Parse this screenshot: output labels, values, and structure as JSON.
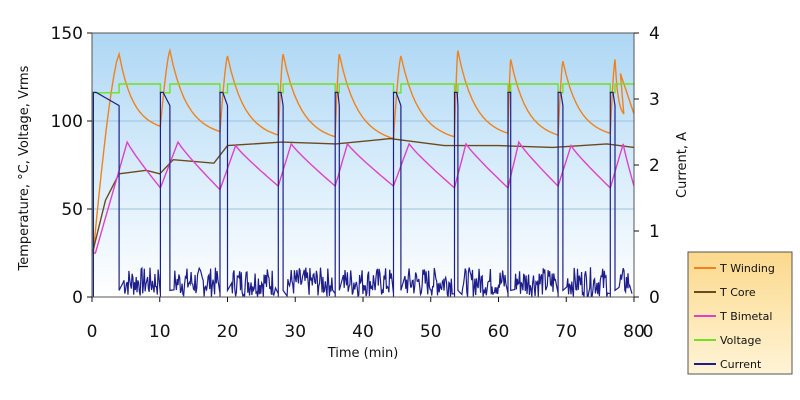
{
  "chart_data": {
    "type": "line",
    "xlabel": "Time (min)",
    "ylabel": "Temperature, °C, Voltage, Vrms",
    "y2label": "Current, A",
    "xlim": [
      0,
      80
    ],
    "ylim": [
      0,
      150
    ],
    "y2lim": [
      0,
      4
    ],
    "xticks": [
      "0",
      "10",
      "20",
      "30",
      "40",
      "50",
      "60",
      "70",
      "80"
    ],
    "yticks": [
      "0",
      "50",
      "100",
      "150"
    ],
    "y2ticks": [
      "0",
      "1",
      "2",
      "3",
      "4"
    ],
    "gridlines_y": [
      50,
      100
    ],
    "background": "light-blue gradient",
    "legend_position": "bottom-right, outside plot",
    "cycles": {
      "on_start": [
        0.2,
        10.1,
        18.9,
        27.5,
        35.9,
        44.5,
        53.5,
        61.4,
        68.8,
        76.5
      ],
      "on_end": [
        4.0,
        11.5,
        20.0,
        28.2,
        36.5,
        45.6,
        54.0,
        61.8,
        69.5,
        77.2
      ]
    },
    "series": [
      {
        "name": "T Winding",
        "color": "#f0821e",
        "axis": "left",
        "peaks": [
          138,
          140,
          137,
          138,
          138,
          137,
          140,
          135,
          134,
          135,
          127
        ],
        "troughs_before_peak": [
          null,
          97,
          94,
          92,
          91,
          90,
          91,
          93,
          92,
          93,
          94
        ],
        "start": 25,
        "end": 104
      },
      {
        "name": "T Core",
        "color": "#6b4a1e",
        "axis": "left",
        "values_sampled_x": [
          0,
          2,
          4,
          8,
          10,
          12,
          18,
          20,
          28,
          36,
          44,
          52,
          60,
          68,
          76,
          80
        ],
        "values_sampled_y": [
          24,
          55,
          70,
          72,
          70,
          78,
          76,
          86,
          88,
          87,
          90,
          86,
          86,
          85,
          87,
          85
        ]
      },
      {
        "name": "T Bimetal",
        "color": "#e040c8",
        "axis": "left",
        "peaks": [
          88,
          88,
          86,
          87,
          87,
          87,
          87,
          88,
          86,
          87
        ],
        "troughs": [
          62,
          61,
          63,
          63,
          63,
          62,
          62,
          63,
          62,
          63
        ],
        "start": 25,
        "end": 78
      },
      {
        "name": "Voltage",
        "color": "#70e020",
        "axis": "left",
        "on_level": 116,
        "off_level": 121,
        "start": 0
      },
      {
        "name": "Current",
        "color": "#1e1e8a",
        "axis": "right",
        "on_level": 3.1,
        "on_level_end": 2.9,
        "off_level_min": 0.0,
        "off_level_max": 0.45
      }
    ]
  }
}
